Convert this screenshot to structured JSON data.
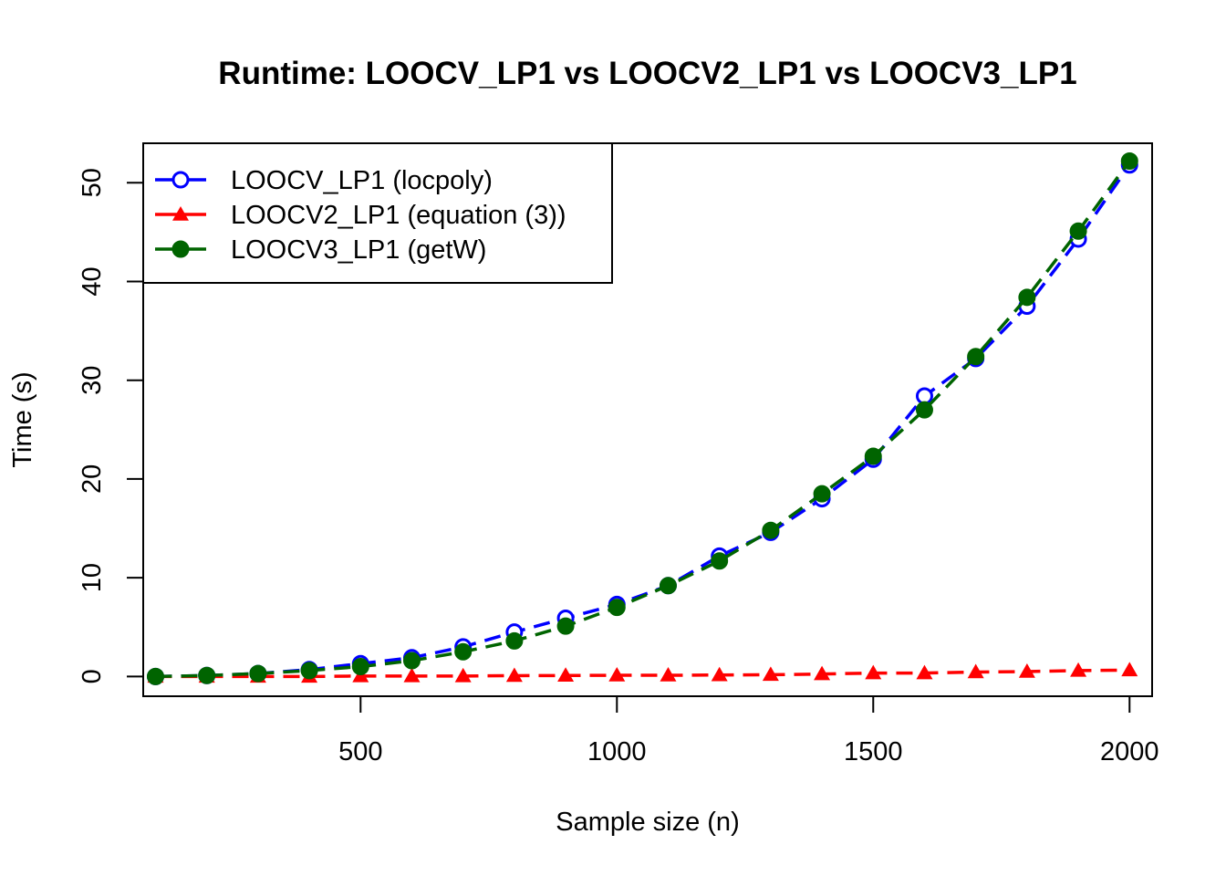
{
  "chart_data": {
    "type": "line",
    "title": "Runtime: LOOCV_LP1 vs LOOCV2_LP1 vs LOOCV3_LP1",
    "xlabel": "Sample size (n)",
    "ylabel": "Time (s)",
    "xlim": [
      76,
      2044
    ],
    "ylim": [
      -2.0,
      54.0
    ],
    "x_ticks": [
      500,
      1000,
      1500,
      2000
    ],
    "y_ticks": [
      0,
      10,
      20,
      30,
      40,
      50
    ],
    "grid": false,
    "legend_position": "top-left",
    "x": [
      100,
      200,
      300,
      400,
      500,
      600,
      700,
      800,
      900,
      1000,
      1100,
      1200,
      1300,
      1400,
      1500,
      1600,
      1700,
      1800,
      1900,
      2000
    ],
    "series": [
      {
        "name": "LOOCV_LP1 (locpoly)",
        "color": "#0000ff",
        "marker": "open-circle",
        "line": "dashed",
        "values": [
          0.0,
          0.1,
          0.3,
          0.7,
          1.3,
          1.9,
          3.0,
          4.5,
          5.9,
          7.3,
          9.2,
          12.2,
          14.6,
          18.0,
          22.0,
          28.4,
          32.2,
          37.5,
          44.3,
          51.8
        ]
      },
      {
        "name": "LOOCV2_LP1 (equation (3))",
        "color": "#ff0000",
        "marker": "filled-triangle",
        "line": "dashed",
        "values": [
          0.0,
          0.0,
          0.0,
          0.0,
          0.05,
          0.05,
          0.05,
          0.08,
          0.1,
          0.12,
          0.12,
          0.15,
          0.18,
          0.25,
          0.35,
          0.35,
          0.45,
          0.5,
          0.6,
          0.65
        ]
      },
      {
        "name": "LOOCV3_LP1 (getW)",
        "color": "#006400",
        "marker": "filled-circle",
        "line": "dashed",
        "values": [
          0.0,
          0.1,
          0.3,
          0.6,
          1.0,
          1.6,
          2.5,
          3.6,
          5.1,
          7.0,
          9.2,
          11.7,
          14.8,
          18.5,
          22.3,
          27.0,
          32.4,
          38.4,
          45.1,
          52.2
        ]
      }
    ]
  }
}
